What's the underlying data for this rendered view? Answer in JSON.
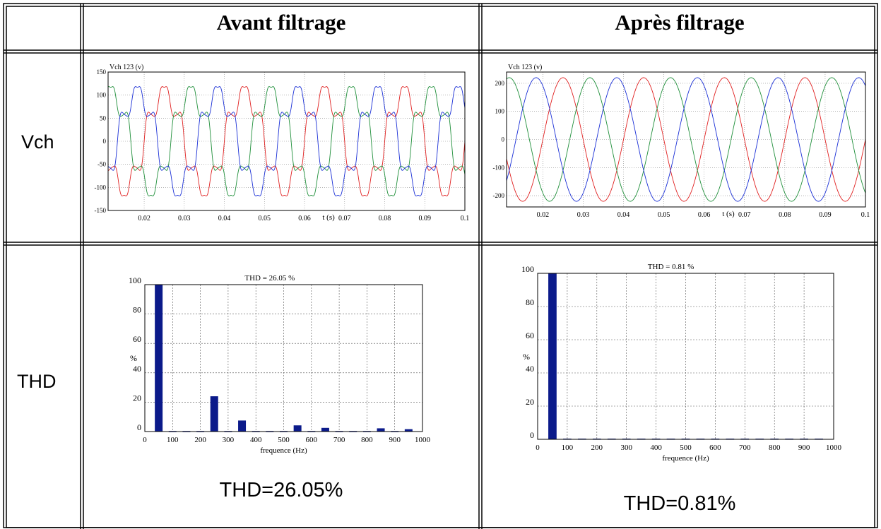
{
  "table": {
    "header": {
      "col1": "Avant filtrage",
      "col2": "Après filtrage"
    },
    "rows": {
      "vch": "Vch",
      "thd": "THD"
    },
    "captions": {
      "before": "THD=26.05%",
      "after": "THD=0.81%"
    }
  },
  "chart_data": [
    {
      "id": "vch-before",
      "type": "line",
      "title": "Vch 123 (v)",
      "xlabel": "t (s)",
      "ylabel": "",
      "xlim": [
        0.011,
        0.1
      ],
      "ylim": [
        -150,
        150
      ],
      "x_ticks": [
        "0.02",
        "0.03",
        "0.04",
        "0.05",
        "0.06",
        "0.07",
        "0.08",
        "0.09",
        "0.1"
      ],
      "y_ticks": [
        "150",
        "100",
        "50",
        "0",
        "-50",
        "-100",
        "-150"
      ],
      "grid": true,
      "frequency_hz": 50,
      "series": [
        {
          "color": "#e02020",
          "phase_deg": 0,
          "amplitude": 105,
          "harmonics": [
            {
              "order": 5,
              "rel": 0.24
            },
            {
              "order": 7,
              "rel": 0.08
            },
            {
              "order": 11,
              "rel": 0.045
            }
          ]
        },
        {
          "color": "#1f8f3a",
          "phase_deg": -120,
          "amplitude": 105,
          "harmonics": [
            {
              "order": 5,
              "rel": 0.24
            },
            {
              "order": 7,
              "rel": 0.08
            },
            {
              "order": 11,
              "rel": 0.045
            }
          ]
        },
        {
          "color": "#1a2fd6",
          "phase_deg": 120,
          "amplitude": 105,
          "harmonics": [
            {
              "order": 5,
              "rel": 0.24
            },
            {
              "order": 7,
              "rel": 0.08
            },
            {
              "order": 11,
              "rel": 0.045
            }
          ]
        }
      ]
    },
    {
      "id": "vch-after",
      "type": "line",
      "title": "Vch 123 (v)",
      "xlabel": "t (s)",
      "ylabel": "",
      "xlim": [
        0.011,
        0.1
      ],
      "ylim": [
        -240,
        240
      ],
      "x_ticks": [
        "0.02",
        "0.03",
        "0.04",
        "0.05",
        "0.06",
        "0.07",
        "0.08",
        "0.09",
        "0.1"
      ],
      "y_ticks": [
        "200",
        "100",
        "0",
        "-100",
        "-200"
      ],
      "grid": true,
      "frequency_hz": 50,
      "series": [
        {
          "color": "#e02020",
          "phase_deg": 0,
          "amplitude": 220,
          "harmonics": []
        },
        {
          "color": "#1f8f3a",
          "phase_deg": -120,
          "amplitude": 220,
          "harmonics": []
        },
        {
          "color": "#1a2fd6",
          "phase_deg": 120,
          "amplitude": 220,
          "harmonics": []
        }
      ]
    },
    {
      "id": "thd-before",
      "type": "bar",
      "title": "THD = 26.05 %",
      "xlabel": "frequence (Hz)",
      "ylabel": "%",
      "xlim": [
        0,
        1000
      ],
      "ylim": [
        0,
        100
      ],
      "x_ticks": [
        "0",
        "100",
        "200",
        "300",
        "400",
        "500",
        "600",
        "700",
        "800",
        "900",
        "1000"
      ],
      "y_ticks": [
        "100",
        "80",
        "60",
        "40",
        "20",
        "0"
      ],
      "grid": true,
      "bar_color": "#0b1a8a",
      "x": [
        50,
        100,
        150,
        200,
        250,
        300,
        350,
        400,
        450,
        500,
        550,
        600,
        650,
        700,
        750,
        800,
        850,
        900,
        950
      ],
      "values": [
        100,
        0.3,
        0.3,
        0.3,
        24,
        0.3,
        7.5,
        0.3,
        0.3,
        0.3,
        4.2,
        0.3,
        2.5,
        0.3,
        0.3,
        0.3,
        2.2,
        0.3,
        1.6
      ]
    },
    {
      "id": "thd-after",
      "type": "bar",
      "title": "THD = 0.81 %",
      "xlabel": "frequence (Hz)",
      "ylabel": "%",
      "xlim": [
        0,
        1000
      ],
      "ylim": [
        0,
        100
      ],
      "x_ticks": [
        "0",
        "100",
        "200",
        "300",
        "400",
        "500",
        "600",
        "700",
        "800",
        "900",
        "1000"
      ],
      "y_ticks": [
        "100",
        "80",
        "60",
        "40",
        "20",
        "0"
      ],
      "grid": true,
      "bar_color": "#0b1a8a",
      "x": [
        50,
        100,
        150,
        200,
        250,
        300,
        350,
        400,
        450,
        500,
        550,
        600,
        650,
        700,
        750,
        800,
        850,
        900,
        950
      ],
      "values": [
        100,
        0.4,
        0.4,
        0.4,
        0.4,
        0.4,
        0.4,
        0.4,
        0.4,
        0.4,
        0.4,
        0.4,
        0.4,
        0.4,
        0.4,
        0.4,
        0.4,
        0.4,
        0.4
      ]
    }
  ]
}
